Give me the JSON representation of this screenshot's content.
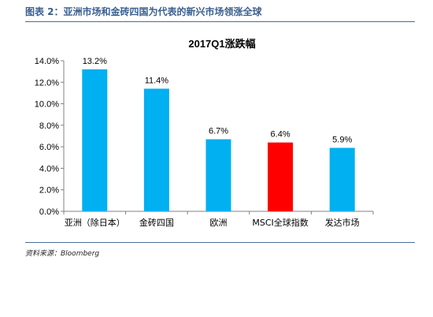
{
  "figure_title": "图表 2：亚洲市场和金砖四国为代表的新兴市场领涨全球",
  "source_note": "资料来源：Bloomberg",
  "chart_data": {
    "type": "bar",
    "title": "2017Q1涨跌幅",
    "categories": [
      "亚洲（除日本）",
      "金砖四国",
      "欧洲",
      "MSCI全球指数",
      "发达市场"
    ],
    "values": [
      13.2,
      11.4,
      6.7,
      6.4,
      5.9
    ],
    "value_labels": [
      "13.2%",
      "11.4%",
      "6.7%",
      "6.4%",
      "5.9%"
    ],
    "bar_colors": [
      "#00b0f0",
      "#00b0f0",
      "#00b0f0",
      "#ff0000",
      "#00b0f0"
    ],
    "ylim": [
      0,
      14
    ],
    "yticks": [
      0,
      2,
      4,
      6,
      8,
      10,
      12,
      14
    ],
    "ytick_labels": [
      "0.0%",
      "2.0%",
      "4.0%",
      "6.0%",
      "8.0%",
      "10.0%",
      "12.0%",
      "14.0%"
    ],
    "xlabel": "",
    "ylabel": "",
    "grid": false,
    "legend": "none"
  }
}
